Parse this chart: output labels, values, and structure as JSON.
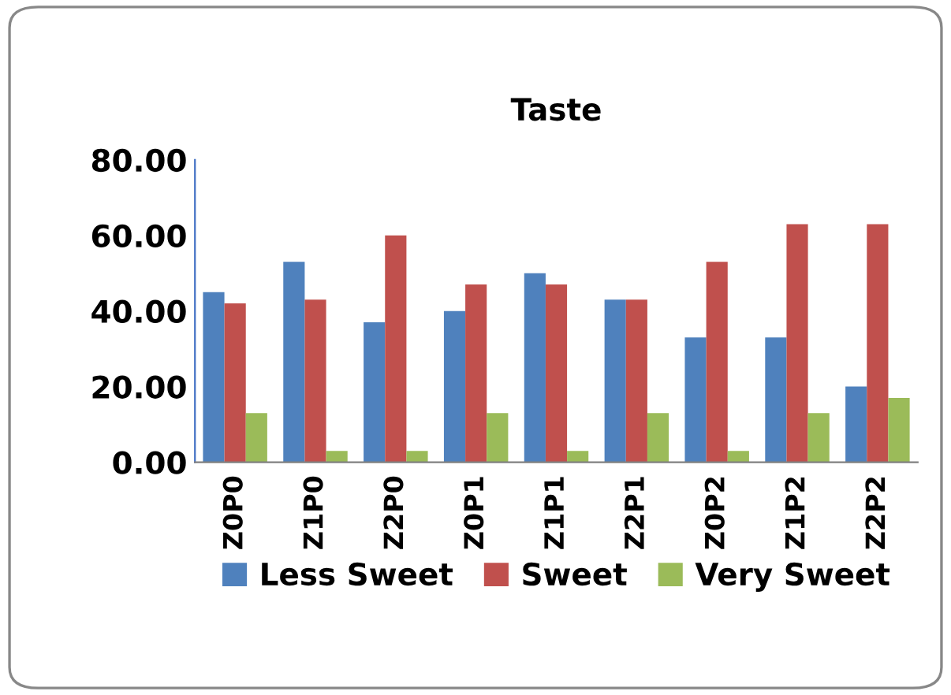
{
  "chart_data": {
    "type": "bar",
    "title": "Taste",
    "categories": [
      "Z0P0",
      "Z1P0",
      "Z2P0",
      "Z0P1",
      "Z1P1",
      "Z2P1",
      "Z0P2",
      "Z1P2",
      "Z2P2"
    ],
    "series": [
      {
        "name": "Less Sweet",
        "color": "#4f81bd",
        "values": [
          45,
          53,
          37,
          40,
          50,
          43,
          33,
          33,
          20
        ]
      },
      {
        "name": "Sweet",
        "color": "#c0504d",
        "values": [
          42,
          43,
          60,
          47,
          47,
          43,
          53,
          63,
          63
        ]
      },
      {
        "name": "Very Sweet",
        "color": "#9bbb59",
        "values": [
          13,
          3,
          3,
          13,
          3,
          13,
          3,
          13,
          17
        ]
      }
    ],
    "ylim": [
      0,
      80
    ],
    "yticks": [
      {
        "value": 0,
        "label": "0.00"
      },
      {
        "value": 20,
        "label": "20.00"
      },
      {
        "value": 40,
        "label": "40.00"
      },
      {
        "value": 60,
        "label": "60.00"
      },
      {
        "value": 80,
        "label": "80.00"
      }
    ],
    "grid": false,
    "legend": "bottom"
  }
}
